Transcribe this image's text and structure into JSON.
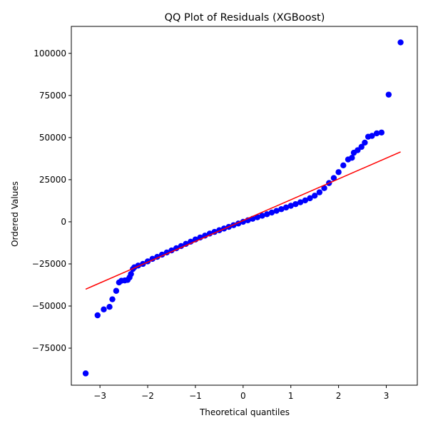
{
  "chart_data": {
    "type": "scatter",
    "title": "QQ Plot of Residuals (XGBoost)",
    "xlabel": "Theoretical quantiles",
    "ylabel": "Ordered Values",
    "xlim": [
      -3.6,
      3.65
    ],
    "ylim": [
      -97000,
      116000
    ],
    "grid": false,
    "xticks": [
      -3,
      -2,
      -1,
      0,
      1,
      2,
      3
    ],
    "xtick_labels": [
      "−3",
      "−2",
      "−1",
      "0",
      "1",
      "2",
      "3"
    ],
    "yticks": [
      -75000,
      -50000,
      -25000,
      0,
      25000,
      50000,
      75000,
      100000
    ],
    "ytick_labels": [
      "−75000",
      "−50000",
      "−25000",
      "0",
      "25000",
      "50000",
      "75000",
      "100000"
    ],
    "colors": {
      "points": "#0000ff",
      "fit_line": "#ff0000",
      "axes": "#000000"
    },
    "fit_line": {
      "x": [
        -3.3,
        3.3
      ],
      "y": [
        -40000,
        41500
      ]
    },
    "series": [
      {
        "points": [
          [
            -3.3,
            -90000
          ],
          [
            -3.05,
            -55500
          ],
          [
            -2.92,
            -52000
          ],
          [
            -2.8,
            -50500
          ],
          [
            -2.74,
            -46000
          ],
          [
            -2.66,
            -41000
          ],
          [
            -2.6,
            -36000
          ],
          [
            -2.55,
            -35000
          ],
          [
            -2.48,
            -34800
          ],
          [
            -2.42,
            -34500
          ],
          [
            -2.38,
            -33000
          ],
          [
            -2.35,
            -31000
          ],
          [
            -2.31,
            -28000
          ],
          [
            -2.28,
            -27000
          ],
          [
            -2.2,
            -26000
          ],
          [
            -2.1,
            -25000
          ],
          [
            -2.0,
            -23500
          ],
          [
            -1.9,
            -22000
          ],
          [
            -1.8,
            -20800
          ],
          [
            -1.7,
            -19500
          ],
          [
            -1.6,
            -18200
          ],
          [
            -1.5,
            -17000
          ],
          [
            -1.4,
            -15700
          ],
          [
            -1.3,
            -14400
          ],
          [
            -1.2,
            -13100
          ],
          [
            -1.1,
            -11800
          ],
          [
            -1.0,
            -10500
          ],
          [
            -0.9,
            -9300
          ],
          [
            -0.8,
            -8200
          ],
          [
            -0.7,
            -7000
          ],
          [
            -0.6,
            -6000
          ],
          [
            -0.5,
            -5000
          ],
          [
            -0.4,
            -4000
          ],
          [
            -0.3,
            -3000
          ],
          [
            -0.2,
            -2000
          ],
          [
            -0.1,
            -1000
          ],
          [
            0.0,
            0
          ],
          [
            0.1,
            900
          ],
          [
            0.2,
            1800
          ],
          [
            0.3,
            2700
          ],
          [
            0.4,
            3600
          ],
          [
            0.5,
            4500
          ],
          [
            0.6,
            5500
          ],
          [
            0.7,
            6500
          ],
          [
            0.8,
            7500
          ],
          [
            0.9,
            8500
          ],
          [
            1.0,
            9500
          ],
          [
            1.1,
            10500
          ],
          [
            1.2,
            11600
          ],
          [
            1.3,
            12700
          ],
          [
            1.4,
            14000
          ],
          [
            1.5,
            15500
          ],
          [
            1.6,
            17500
          ],
          [
            1.7,
            20000
          ],
          [
            1.8,
            23000
          ],
          [
            1.9,
            26000
          ],
          [
            2.0,
            29500
          ],
          [
            2.1,
            33500
          ],
          [
            2.2,
            37000
          ],
          [
            2.28,
            38000
          ],
          [
            2.32,
            41000
          ],
          [
            2.4,
            42500
          ],
          [
            2.48,
            44500
          ],
          [
            2.55,
            47000
          ],
          [
            2.62,
            50500
          ],
          [
            2.7,
            51000
          ],
          [
            2.8,
            52500
          ],
          [
            2.9,
            53000
          ],
          [
            3.05,
            75500
          ],
          [
            3.3,
            106500
          ]
        ]
      }
    ]
  }
}
